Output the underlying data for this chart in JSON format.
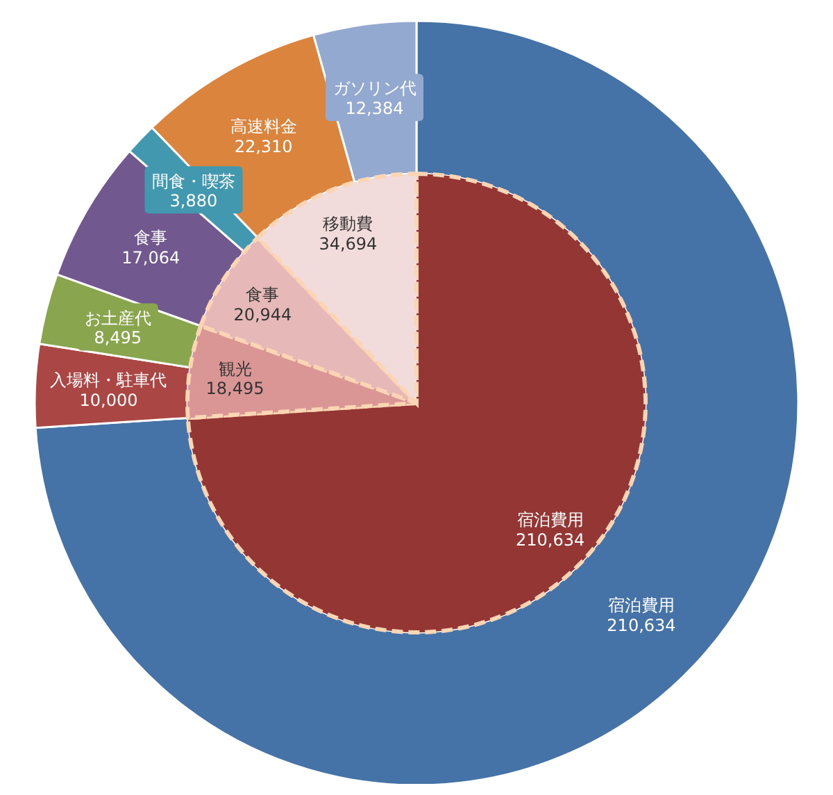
{
  "chart_data": [
    {
      "type": "pie",
      "categories": [
        "宿泊費用",
        "観光",
        "食事",
        "移動費"
      ],
      "values": [
        210634,
        18495,
        20944,
        34694
      ],
      "colors": [
        "#943634",
        "#d99694",
        "#e6b9b8",
        "#f2dcdb"
      ],
      "value_labels": [
        "210,634",
        "18,495",
        "20,944",
        "34,694"
      ]
    },
    {
      "type": "donut",
      "categories": [
        "宿泊費用",
        "入場料・駐車代",
        "お土産代",
        "食事",
        "間食・喫茶",
        "高速料金",
        "ガソリン代"
      ],
      "values": [
        210634,
        10000,
        8495,
        17064,
        3880,
        22310,
        12384
      ],
      "colors": [
        "#4572a7",
        "#aa4643",
        "#89a54e",
        "#71588f",
        "#4198af",
        "#db843d",
        "#93a9cf"
      ],
      "value_labels": [
        "210,634",
        "10,000",
        "8,495",
        "17,064",
        "3,880",
        "22,310",
        "12,384"
      ]
    }
  ]
}
